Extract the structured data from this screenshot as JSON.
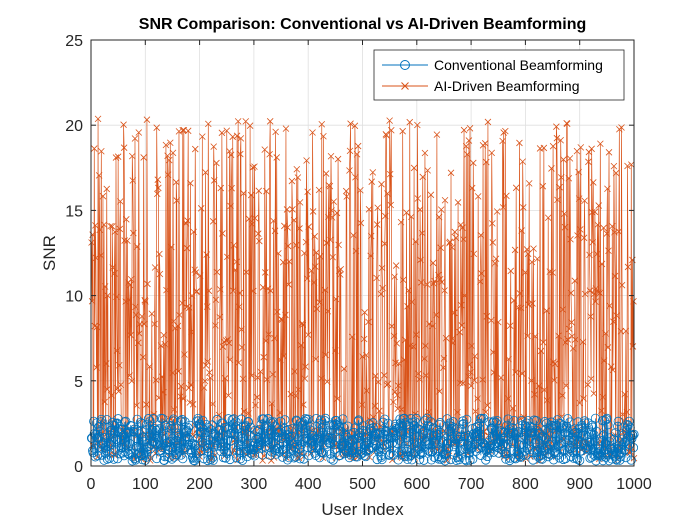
{
  "chart_data": {
    "type": "line",
    "title": "SNR Comparison: Conventional vs AI-Driven Beamforming",
    "xlabel": "User Index",
    "ylabel": "SNR",
    "xlim": [
      0,
      1000
    ],
    "ylim": [
      0,
      25
    ],
    "xticks": [
      0,
      100,
      200,
      300,
      400,
      500,
      600,
      700,
      800,
      900,
      1000
    ],
    "yticks": [
      0,
      5,
      10,
      15,
      20,
      25
    ],
    "grid": true,
    "legend_position": "top-right",
    "x_start": 1,
    "x_step": 1,
    "n_points": 1000,
    "series": [
      {
        "name": "Conventional Beamforming",
        "color": "#0072BD",
        "marker": "o",
        "approx_range": [
          0.3,
          2.8
        ]
      },
      {
        "name": "AI-Driven Beamforming",
        "color": "#D95319",
        "marker": "x",
        "approx_range": [
          0.3,
          20.4
        ]
      }
    ]
  }
}
